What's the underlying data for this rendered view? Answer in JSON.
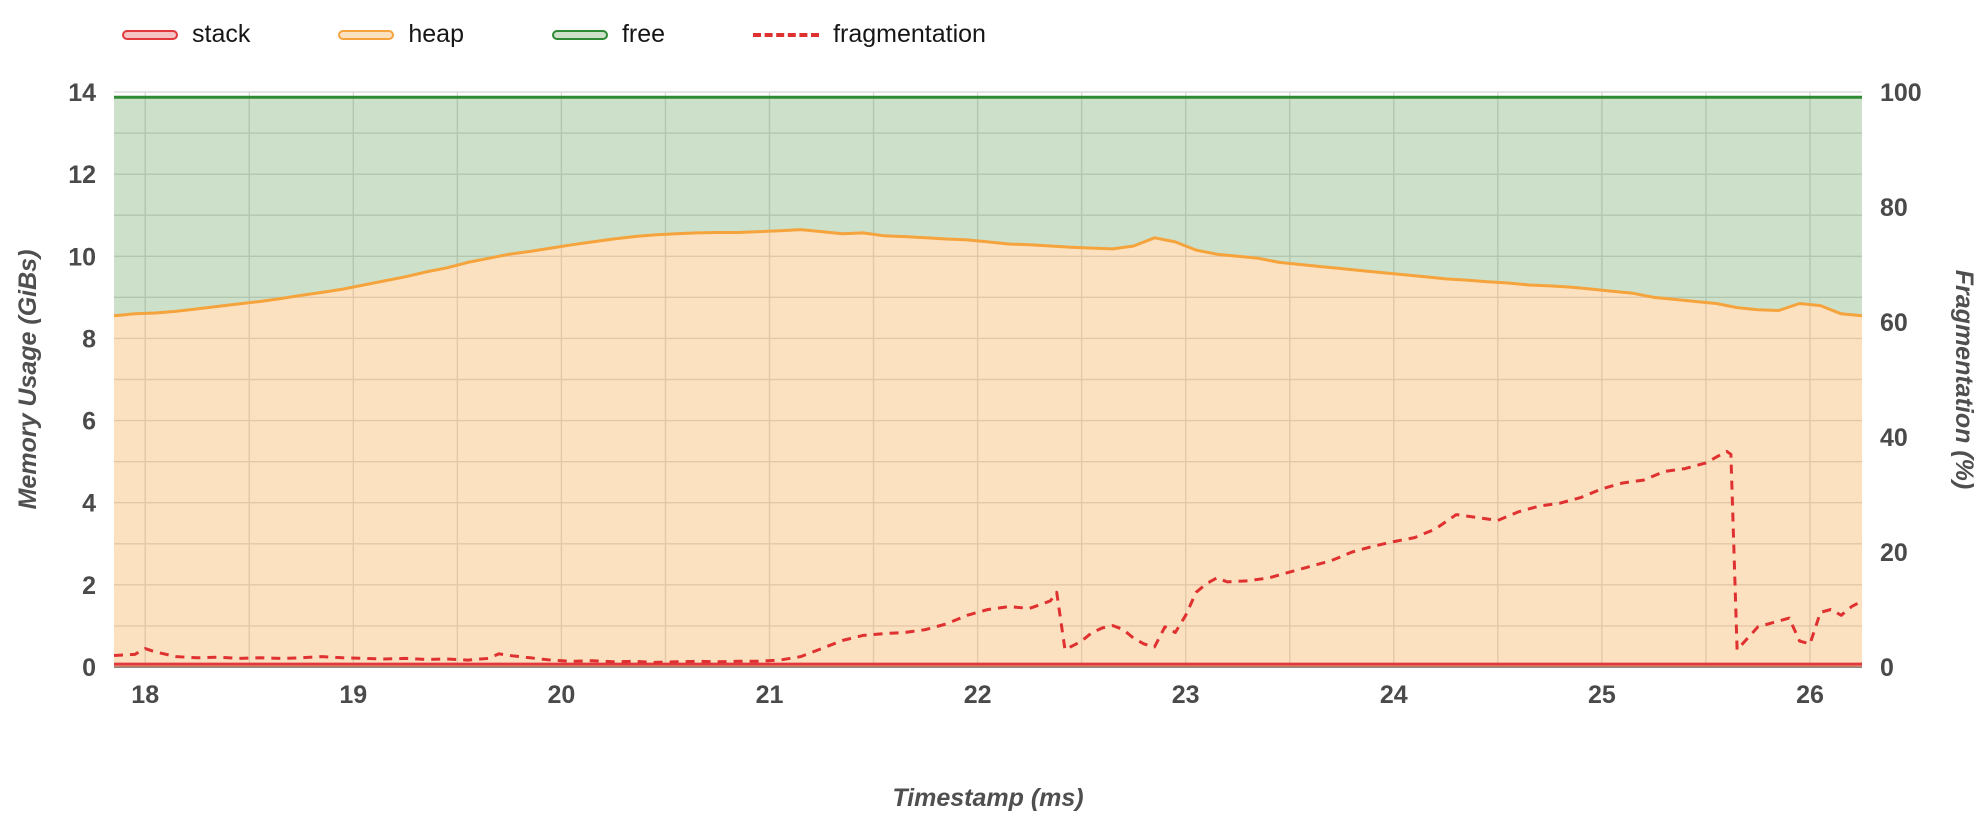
{
  "page": {
    "background": "#ffffff"
  },
  "colors": {
    "grid": "#dbdbdb",
    "axis": "#8a8a8a",
    "tick_text": "#4a4a4a",
    "title_text": "#4f4f4f",
    "legend_text": "#161616"
  },
  "chart_data": {
    "type": "area",
    "title": "",
    "xlabel": "Timestamp (ms)",
    "ylabel": "Memory Usage (GiBs)",
    "y2label": "Fragmentation (%)",
    "xlim": [
      17.85,
      26.25
    ],
    "ylim": [
      0,
      14
    ],
    "y2lim": [
      0,
      100
    ],
    "x_ticks": [
      18,
      19,
      20,
      21,
      22,
      23,
      24,
      25,
      26
    ],
    "y_ticks": [
      0,
      2,
      4,
      6,
      8,
      10,
      12,
      14
    ],
    "y2_ticks": [
      0,
      20,
      40,
      60,
      80,
      100
    ],
    "x_minor_step": 0.5,
    "y_minor_step": 1,
    "grid": true,
    "legend_position": "top-left",
    "series": [
      {
        "name": "stack",
        "axis": "y1",
        "color": "#e0393e",
        "fill": "rgba(224,57,62,0.30)",
        "style": "solid",
        "area": true,
        "x": [
          17.85,
          26.25
        ],
        "y": [
          0.07,
          0.07
        ]
      },
      {
        "name": "heap",
        "axis": "y1",
        "color": "#f5a33c",
        "fill": "rgba(245,163,60,0.32)",
        "style": "solid",
        "area": true,
        "x_start": 17.85,
        "x_step": 0.1,
        "y": [
          8.55,
          8.6,
          8.62,
          8.66,
          8.72,
          8.78,
          8.84,
          8.9,
          8.97,
          9.05,
          9.12,
          9.2,
          9.3,
          9.4,
          9.5,
          9.62,
          9.72,
          9.85,
          9.95,
          10.05,
          10.12,
          10.2,
          10.28,
          10.35,
          10.42,
          10.48,
          10.52,
          10.55,
          10.57,
          10.58,
          10.58,
          10.6,
          10.62,
          10.65,
          10.6,
          10.55,
          10.57,
          10.5,
          10.48,
          10.45,
          10.42,
          10.4,
          10.35,
          10.3,
          10.28,
          10.25,
          10.22,
          10.2,
          10.18,
          10.25,
          10.45,
          10.35,
          10.15,
          10.05,
          10.0,
          9.95,
          9.85,
          9.8,
          9.75,
          9.7,
          9.65,
          9.6,
          9.55,
          9.5,
          9.45,
          9.42,
          9.38,
          9.35,
          9.3,
          9.28,
          9.25,
          9.2,
          9.15,
          9.1,
          9.0,
          8.95,
          8.9,
          8.85,
          8.75,
          8.7,
          8.68,
          8.85,
          8.8,
          8.6,
          8.55
        ]
      },
      {
        "name": "free",
        "axis": "y1",
        "color": "#2e8a35",
        "fill": "rgba(76,145,65,0.28)",
        "style": "solid",
        "area": true,
        "fill_between": "heap",
        "x": [
          17.85,
          26.25
        ],
        "y": [
          13.87,
          13.87
        ]
      },
      {
        "name": "fragmentation",
        "axis": "y2",
        "color": "#e03131",
        "style": "dashed",
        "area": false,
        "x": [
          17.85,
          17.95,
          18.0,
          18.05,
          18.15,
          18.25,
          18.35,
          18.45,
          18.55,
          18.65,
          18.75,
          18.85,
          18.95,
          19.05,
          19.15,
          19.25,
          19.35,
          19.45,
          19.55,
          19.65,
          19.7,
          19.75,
          19.85,
          19.95,
          20.05,
          20.15,
          20.25,
          20.35,
          20.45,
          20.55,
          20.65,
          20.75,
          20.85,
          20.95,
          21.05,
          21.15,
          21.25,
          21.35,
          21.45,
          21.55,
          21.65,
          21.75,
          21.85,
          21.95,
          22.05,
          22.15,
          22.25,
          22.35,
          22.38,
          22.42,
          22.5,
          22.55,
          22.6,
          22.65,
          22.7,
          22.75,
          22.8,
          22.85,
          22.9,
          22.95,
          23.0,
          23.05,
          23.1,
          23.15,
          23.2,
          23.3,
          23.4,
          23.5,
          23.6,
          23.7,
          23.8,
          23.9,
          24.0,
          24.1,
          24.2,
          24.3,
          24.4,
          24.5,
          24.6,
          24.7,
          24.8,
          24.9,
          25.0,
          25.1,
          25.2,
          25.3,
          25.4,
          25.5,
          25.55,
          25.6,
          25.62,
          25.65,
          25.75,
          25.85,
          25.9,
          25.95,
          26.0,
          26.05,
          26.1,
          26.15,
          26.2,
          26.25
        ],
        "y": [
          2.0,
          2.2,
          3.2,
          2.6,
          1.8,
          1.6,
          1.7,
          1.5,
          1.6,
          1.5,
          1.6,
          1.8,
          1.6,
          1.5,
          1.4,
          1.5,
          1.3,
          1.4,
          1.2,
          1.5,
          2.3,
          2.0,
          1.6,
          1.2,
          1.0,
          1.1,
          0.9,
          1.0,
          0.8,
          0.9,
          1.0,
          0.9,
          1.0,
          1.0,
          1.2,
          1.8,
          3.2,
          4.6,
          5.5,
          5.8,
          6.0,
          6.5,
          7.5,
          9.0,
          10.0,
          10.5,
          10.2,
          11.5,
          13.0,
          3.0,
          4.5,
          6.0,
          6.8,
          7.2,
          6.5,
          5.0,
          4.0,
          3.5,
          7.0,
          6.0,
          9.0,
          13.0,
          14.5,
          15.5,
          14.8,
          15.0,
          15.5,
          16.5,
          17.5,
          18.5,
          20.0,
          21.0,
          21.8,
          22.5,
          24.0,
          26.5,
          26.0,
          25.5,
          27.0,
          28.0,
          28.5,
          29.5,
          31.0,
          32.0,
          32.5,
          34.0,
          34.5,
          35.5,
          36.5,
          37.5,
          37.0,
          3.0,
          7.0,
          8.0,
          8.5,
          4.5,
          4.0,
          9.5,
          10.0,
          9.0,
          10.5,
          11.5
        ]
      }
    ]
  }
}
